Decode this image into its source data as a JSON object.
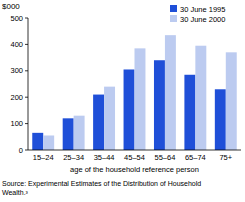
{
  "chart_data": {
    "type": "bar",
    "y_label": "$000",
    "x_label": "age of the household reference person",
    "source": [
      "Source: Experimental Estimates of the Distribution of Household",
      "Wealth.³"
    ],
    "categories": [
      "15–24",
      "25–34",
      "35–44",
      "45–54",
      "55–64",
      "65–74",
      "75+"
    ],
    "series": [
      {
        "name": "30 June 1995",
        "color": "#1f4fd8",
        "values": [
          65,
          120,
          210,
          305,
          340,
          285,
          230
        ]
      },
      {
        "name": "30 June 2000",
        "color": "#bccbf0",
        "values": [
          55,
          130,
          240,
          385,
          435,
          395,
          370
        ]
      }
    ],
    "ylim": [
      0,
      500
    ],
    "yticks": [
      0,
      100,
      200,
      300,
      400,
      500
    ],
    "grid": false,
    "legend": "top-right"
  }
}
